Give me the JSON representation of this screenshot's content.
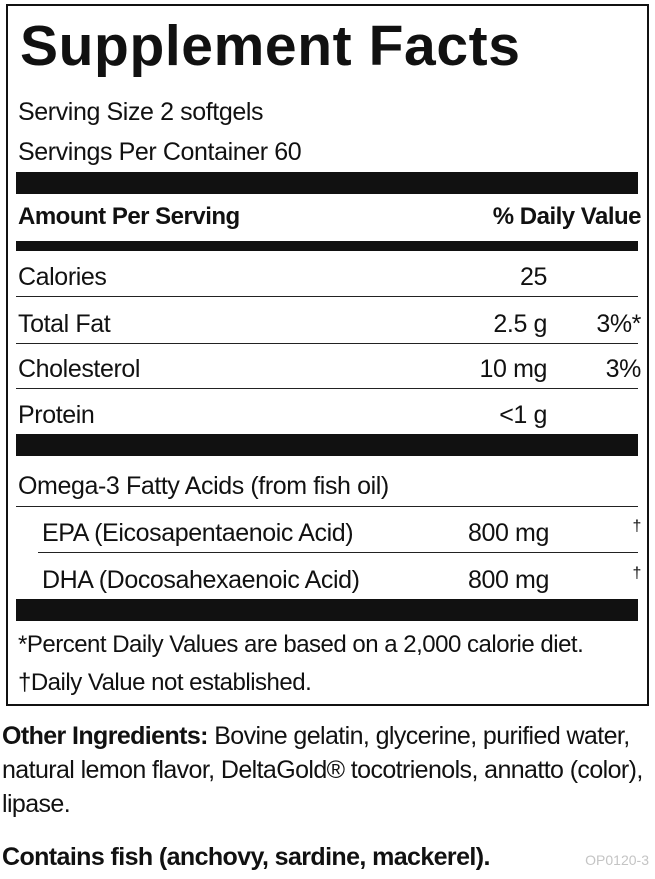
{
  "title": "Supplement Facts",
  "serving_size": "Serving Size 2 softgels",
  "servings_per_container": "Servings Per Container 60",
  "header": {
    "amount": "Amount Per Serving",
    "daily_value": "% Daily Value"
  },
  "nutrients": [
    {
      "name": "Calories",
      "amount": "25",
      "dv": ""
    },
    {
      "name": "Total Fat",
      "amount": "2.5 g",
      "dv": "3%*"
    },
    {
      "name": "Cholesterol",
      "amount": "10 mg",
      "dv": "3%"
    },
    {
      "name": "Protein",
      "amount": "<1 g",
      "dv": ""
    }
  ],
  "omega_heading": "Omega-3 Fatty Acids (from fish oil)",
  "fatty_acids": [
    {
      "name": "EPA (Eicosapentaenoic Acid)",
      "amount": "800 mg",
      "dv": "†"
    },
    {
      "name": "DHA (Docosahexaenoic Acid)",
      "amount": "800 mg",
      "dv": "†"
    }
  ],
  "footnotes": {
    "percent_dv": "*Percent Daily Values are based on a 2,000 calorie diet.",
    "not_established": "†Daily Value not established."
  },
  "other_ingredients": {
    "label": "Other Ingredients:",
    "text": " Bovine gelatin, glycerine, purified water, natural lemon flavor, DeltaGold® tocotrienols, annatto (color), lipase."
  },
  "contains": "Contains fish (anchovy, sardine, mackerel).",
  "product_code": "OP0120-3"
}
